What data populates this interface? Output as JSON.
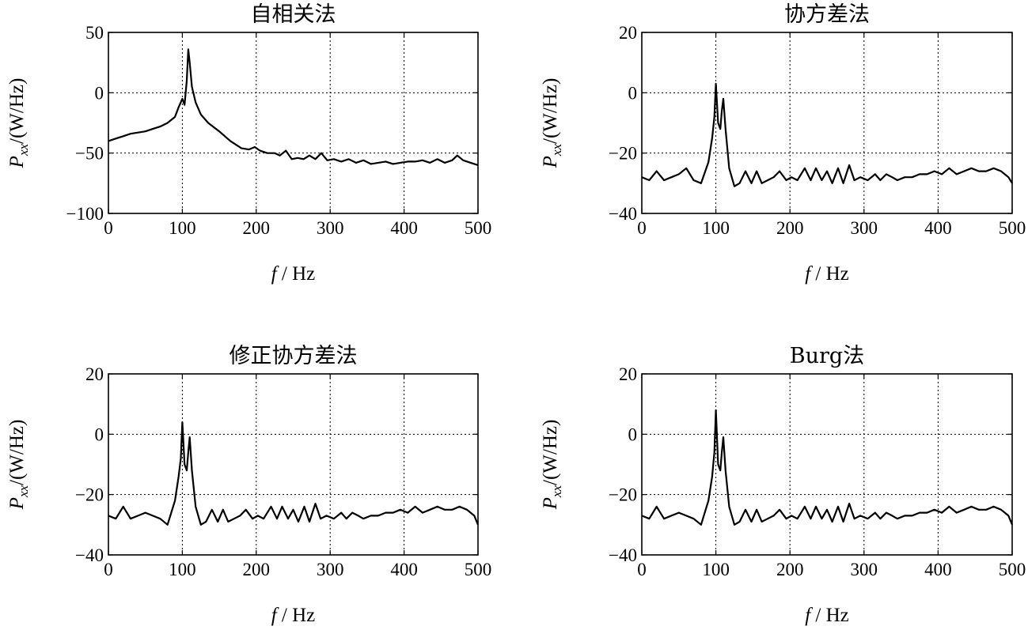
{
  "chart_data": [
    {
      "type": "line",
      "title": "自相关法",
      "xlabel": "f / Hz",
      "ylabel": "P_xx/(W/Hz)",
      "xlim": [
        0,
        500
      ],
      "ylim": [
        -100,
        50
      ],
      "xticks": [
        "0",
        "100",
        "200",
        "300",
        "400",
        "500"
      ],
      "yticks": [
        "50",
        "0",
        "−50",
        "−100"
      ],
      "grid": true,
      "x": [
        0,
        10,
        20,
        30,
        40,
        50,
        60,
        70,
        80,
        90,
        95,
        100,
        103,
        106,
        108,
        110,
        113,
        118,
        125,
        135,
        150,
        165,
        180,
        190,
        198,
        205,
        215,
        225,
        232,
        240,
        248,
        256,
        264,
        272,
        280,
        288,
        296,
        305,
        315,
        325,
        335,
        345,
        355,
        365,
        375,
        385,
        395,
        405,
        415,
        425,
        435,
        445,
        455,
        465,
        472,
        480,
        490,
        500
      ],
      "y": [
        -40,
        -38,
        -36,
        -34,
        -33,
        -32,
        -30,
        -28,
        -25,
        -20,
        -12,
        -5,
        -10,
        10,
        36,
        25,
        5,
        -8,
        -18,
        -25,
        -32,
        -40,
        -46,
        -47,
        -45,
        -48,
        -50,
        -50,
        -52,
        -48,
        -55,
        -54,
        -55,
        -52,
        -55,
        -50,
        -56,
        -55,
        -57,
        -55,
        -58,
        -56,
        -59,
        -58,
        -57,
        -59,
        -58,
        -57,
        -57,
        -56,
        -58,
        -55,
        -58,
        -56,
        -52,
        -56,
        -58,
        -60
      ]
    },
    {
      "type": "line",
      "title": "协方差法",
      "xlabel": "f / Hz",
      "ylabel": "P_xx/(W/Hz)",
      "xlim": [
        0,
        500
      ],
      "ylim": [
        -40,
        20
      ],
      "xticks": [
        "0",
        "100",
        "200",
        "300",
        "400",
        "500"
      ],
      "yticks": [
        "20",
        "0",
        "−20",
        "−40"
      ],
      "grid": true,
      "x": [
        0,
        10,
        20,
        30,
        40,
        50,
        60,
        70,
        80,
        90,
        95,
        98,
        100,
        103,
        106,
        108,
        110,
        113,
        118,
        125,
        132,
        140,
        148,
        155,
        162,
        170,
        178,
        186,
        195,
        202,
        210,
        220,
        228,
        235,
        243,
        250,
        257,
        265,
        272,
        280,
        287,
        295,
        305,
        315,
        322,
        330,
        338,
        345,
        355,
        365,
        375,
        385,
        395,
        405,
        415,
        425,
        435,
        445,
        455,
        465,
        475,
        485,
        495,
        500
      ],
      "y": [
        -28,
        -29,
        -26,
        -29,
        -28,
        -27,
        -25,
        -29,
        -30,
        -23,
        -15,
        -8,
        3,
        -10,
        -12,
        -6,
        -2,
        -12,
        -25,
        -31,
        -30,
        -26,
        -30,
        -26,
        -30,
        -29,
        -28,
        -26,
        -29,
        -28,
        -29,
        -25,
        -29,
        -25,
        -29,
        -26,
        -30,
        -25,
        -30,
        -24,
        -29,
        -28,
        -29,
        -27,
        -29,
        -27,
        -28,
        -29,
        -28,
        -28,
        -27,
        -27,
        -26,
        -27,
        -25,
        -27,
        -26,
        -25,
        -26,
        -26,
        -25,
        -26,
        -28,
        -30
      ]
    },
    {
      "type": "line",
      "title": "修正协方差法",
      "xlabel": "f / Hz",
      "ylabel": "P_xx/(W/Hz)",
      "xlim": [
        0,
        500
      ],
      "ylim": [
        -40,
        20
      ],
      "xticks": [
        "0",
        "100",
        "200",
        "300",
        "400",
        "500"
      ],
      "yticks": [
        "20",
        "0",
        "−20",
        "−40"
      ],
      "grid": true,
      "x": [
        0,
        10,
        20,
        30,
        40,
        50,
        60,
        70,
        80,
        90,
        95,
        98,
        100,
        103,
        106,
        108,
        110,
        113,
        118,
        125,
        132,
        140,
        148,
        155,
        162,
        170,
        178,
        186,
        195,
        202,
        210,
        220,
        228,
        235,
        243,
        250,
        257,
        265,
        272,
        280,
        287,
        295,
        305,
        315,
        322,
        330,
        338,
        345,
        355,
        365,
        375,
        385,
        395,
        405,
        415,
        425,
        435,
        445,
        455,
        465,
        475,
        485,
        495,
        500
      ],
      "y": [
        -27,
        -28,
        -24,
        -28,
        -27,
        -26,
        -27,
        -28,
        -30,
        -22,
        -14,
        -8,
        4,
        -10,
        -12,
        -6,
        -1,
        -12,
        -24,
        -30,
        -29,
        -25,
        -29,
        -25,
        -29,
        -28,
        -27,
        -25,
        -28,
        -27,
        -28,
        -24,
        -28,
        -24,
        -28,
        -25,
        -29,
        -24,
        -29,
        -23,
        -28,
        -27,
        -28,
        -26,
        -28,
        -26,
        -27,
        -28,
        -27,
        -27,
        -26,
        -26,
        -25,
        -26,
        -24,
        -26,
        -25,
        -24,
        -25,
        -25,
        -24,
        -25,
        -27,
        -30
      ]
    },
    {
      "type": "line",
      "title": "Burg法",
      "xlabel": "f / Hz",
      "ylabel": "P_xx/(W/Hz)",
      "xlim": [
        0,
        500
      ],
      "ylim": [
        -40,
        20
      ],
      "xticks": [
        "0",
        "100",
        "200",
        "300",
        "400",
        "500"
      ],
      "yticks": [
        "20",
        "0",
        "−20",
        "−40"
      ],
      "grid": true,
      "x": [
        0,
        10,
        20,
        30,
        40,
        50,
        60,
        70,
        80,
        90,
        95,
        98,
        100,
        103,
        106,
        108,
        110,
        113,
        118,
        125,
        132,
        140,
        148,
        155,
        162,
        170,
        178,
        186,
        195,
        202,
        210,
        220,
        228,
        235,
        243,
        250,
        257,
        265,
        272,
        280,
        287,
        295,
        305,
        315,
        322,
        330,
        338,
        345,
        355,
        365,
        375,
        385,
        395,
        405,
        415,
        425,
        435,
        445,
        455,
        465,
        475,
        485,
        495,
        500
      ],
      "y": [
        -27,
        -28,
        -24,
        -28,
        -27,
        -26,
        -27,
        -28,
        -30,
        -22,
        -14,
        -6,
        8,
        -10,
        -12,
        -6,
        -1,
        -12,
        -24,
        -30,
        -29,
        -25,
        -29,
        -25,
        -29,
        -28,
        -27,
        -25,
        -28,
        -27,
        -28,
        -24,
        -28,
        -24,
        -28,
        -25,
        -29,
        -24,
        -29,
        -23,
        -28,
        -27,
        -28,
        -26,
        -28,
        -26,
        -27,
        -28,
        -27,
        -27,
        -26,
        -26,
        -25,
        -26,
        -24,
        -26,
        -25,
        -24,
        -25,
        -25,
        -24,
        -25,
        -27,
        -30
      ]
    }
  ]
}
